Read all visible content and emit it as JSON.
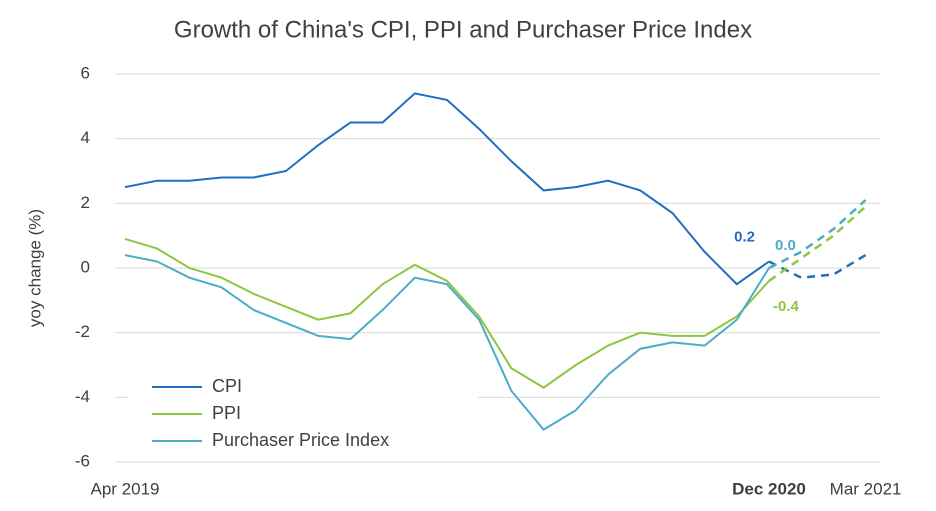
{
  "chart_data": {
    "type": "line",
    "title": "Growth of China's CPI, PPI and Purchaser Price Index",
    "y_label": "yoy change (%)",
    "categories": [
      "Apr 2019",
      null,
      null,
      null,
      null,
      null,
      null,
      null,
      null,
      null,
      null,
      null,
      null,
      null,
      null,
      null,
      null,
      null,
      null,
      null,
      "Dec 2020",
      null,
      null,
      "Mar 2021"
    ],
    "ylim": [
      -6,
      6
    ],
    "yticks": [
      -6,
      -4,
      -2,
      0,
      2,
      4,
      6
    ],
    "grid": true,
    "legend": "lower left",
    "series": [
      {
        "name": "CPI",
        "color": "#1f6fc0",
        "values": [
          2.5,
          2.7,
          2.7,
          2.8,
          2.8,
          3.0,
          3.8,
          4.5,
          4.5,
          5.4,
          5.2,
          4.3,
          3.3,
          2.4,
          2.5,
          2.7,
          2.4,
          1.7,
          0.5,
          -0.5,
          0.2,
          null,
          null,
          null
        ],
        "forecast_values": [
          null,
          null,
          null,
          null,
          null,
          null,
          null,
          null,
          null,
          null,
          null,
          null,
          null,
          null,
          null,
          null,
          null,
          null,
          null,
          null,
          0.2,
          -0.3,
          -0.2,
          0.4
        ]
      },
      {
        "name": "PPI",
        "color": "#8dc63f",
        "values": [
          0.9,
          0.6,
          0.0,
          -0.3,
          -0.8,
          -1.2,
          -1.6,
          -1.4,
          -0.5,
          0.1,
          -0.4,
          -1.5,
          -3.1,
          -3.7,
          -3.0,
          -2.4,
          -2.0,
          -2.1,
          -2.1,
          -1.5,
          -0.4,
          null,
          null,
          null
        ],
        "forecast_values": [
          null,
          null,
          null,
          null,
          null,
          null,
          null,
          null,
          null,
          null,
          null,
          null,
          null,
          null,
          null,
          null,
          null,
          null,
          null,
          null,
          -0.4,
          0.3,
          1.0,
          1.9
        ]
      },
      {
        "name": "Purchaser Price Index",
        "color": "#4bacc6",
        "values": [
          0.4,
          0.2,
          -0.3,
          -0.6,
          -1.3,
          -1.7,
          -2.1,
          -2.2,
          -1.3,
          -0.3,
          -0.5,
          -1.6,
          -3.8,
          -5.0,
          -4.4,
          -3.3,
          -2.5,
          -2.3,
          -2.4,
          -1.6,
          0.0,
          null,
          null,
          null
        ],
        "value_labels": [
          null,
          null,
          null,
          null,
          null,
          null,
          null,
          null,
          null,
          null,
          null,
          null,
          null,
          null,
          null,
          null,
          null,
          null,
          null,
          null,
          "0.0",
          null,
          null,
          null
        ],
        "forecast_values": [
          null,
          null,
          null,
          null,
          null,
          null,
          null,
          null,
          null,
          null,
          null,
          null,
          null,
          null,
          null,
          null,
          null,
          null,
          null,
          null,
          0.0,
          0.5,
          1.2,
          2.1
        ]
      }
    ]
  }
}
